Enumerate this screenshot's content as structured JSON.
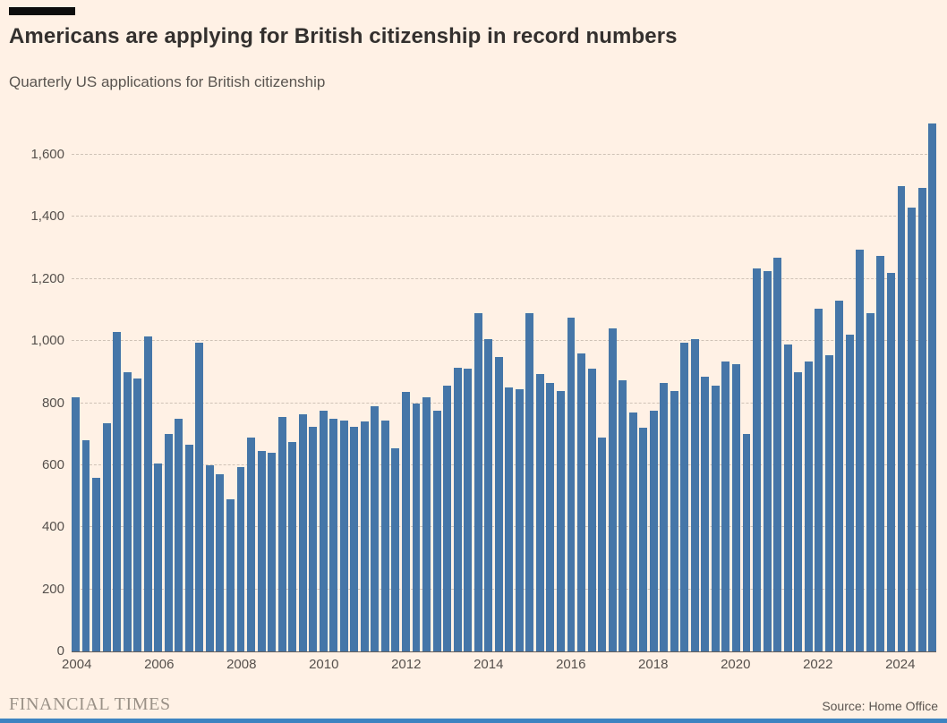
{
  "header": {
    "title": "Americans are applying for British citizenship in record numbers",
    "subtitle": "Quarterly US applications for British citizenship"
  },
  "footer": {
    "brand": "FINANCIAL TIMES",
    "source": "Source: Home Office"
  },
  "colors": {
    "background": "#fff1e5",
    "bar": "#4576a8",
    "grid": "#cfc2b6",
    "axis": "#66605c",
    "bottom_border": "#3d83c1",
    "accent_bar": "#0d0d0d"
  },
  "chart_data": {
    "type": "bar",
    "title": "Americans are applying for British citizenship in record numbers",
    "subtitle": "Quarterly US applications for British citizenship",
    "xlabel": "",
    "ylabel": "",
    "grid": "dashed-horizontal",
    "legend": "none",
    "ylim": [
      0,
      1730
    ],
    "yticks": [
      0,
      200,
      400,
      600,
      800,
      1000,
      1200,
      1400,
      1600
    ],
    "bar_color": "#4576a8",
    "x": [
      "2004 Q1",
      "2004 Q2",
      "2004 Q3",
      "2004 Q4",
      "2005 Q1",
      "2005 Q2",
      "2005 Q3",
      "2005 Q4",
      "2006 Q1",
      "2006 Q2",
      "2006 Q3",
      "2006 Q4",
      "2007 Q1",
      "2007 Q2",
      "2007 Q3",
      "2007 Q4",
      "2008 Q1",
      "2008 Q2",
      "2008 Q3",
      "2008 Q4",
      "2009 Q1",
      "2009 Q2",
      "2009 Q3",
      "2009 Q4",
      "2010 Q1",
      "2010 Q2",
      "2010 Q3",
      "2010 Q4",
      "2011 Q1",
      "2011 Q2",
      "2011 Q3",
      "2011 Q4",
      "2012 Q1",
      "2012 Q2",
      "2012 Q3",
      "2012 Q4",
      "2013 Q1",
      "2013 Q2",
      "2013 Q3",
      "2013 Q4",
      "2014 Q1",
      "2014 Q2",
      "2014 Q3",
      "2014 Q4",
      "2015 Q1",
      "2015 Q2",
      "2015 Q3",
      "2015 Q4",
      "2016 Q1",
      "2016 Q2",
      "2016 Q3",
      "2016 Q4",
      "2017 Q1",
      "2017 Q2",
      "2017 Q3",
      "2017 Q4",
      "2018 Q1",
      "2018 Q2",
      "2018 Q3",
      "2018 Q4",
      "2019 Q1",
      "2019 Q2",
      "2019 Q3",
      "2019 Q4",
      "2020 Q1",
      "2020 Q2",
      "2020 Q3",
      "2020 Q4",
      "2021 Q1",
      "2021 Q2",
      "2021 Q3",
      "2021 Q4",
      "2022 Q1",
      "2022 Q2",
      "2022 Q3",
      "2022 Q4",
      "2023 Q1",
      "2023 Q2",
      "2023 Q3",
      "2023 Q4",
      "2024 Q1",
      "2024 Q2",
      "2024 Q3",
      "2024 Q4"
    ],
    "values": [
      820,
      680,
      560,
      735,
      1030,
      900,
      880,
      1015,
      605,
      700,
      750,
      665,
      995,
      600,
      570,
      490,
      595,
      690,
      645,
      640,
      755,
      675,
      765,
      725,
      775,
      750,
      745,
      725,
      740,
      790,
      745,
      655,
      835,
      800,
      820,
      775,
      855,
      915,
      910,
      1090,
      1005,
      950,
      850,
      845,
      1090,
      895,
      865,
      840,
      1075,
      960,
      910,
      690,
      1040,
      875,
      770,
      720,
      775,
      865,
      840,
      995,
      1005,
      885,
      855,
      935,
      925,
      700,
      1235,
      1225,
      1270,
      990,
      900,
      935,
      1105,
      955,
      1130,
      1020,
      1295,
      1090,
      1275,
      1220,
      1500,
      1430,
      1495,
      1700
    ],
    "xticks": [
      {
        "label": "2004",
        "index": 0
      },
      {
        "label": "2006",
        "index": 8
      },
      {
        "label": "2008",
        "index": 16
      },
      {
        "label": "2010",
        "index": 24
      },
      {
        "label": "2012",
        "index": 32
      },
      {
        "label": "2014",
        "index": 40
      },
      {
        "label": "2016",
        "index": 48
      },
      {
        "label": "2018",
        "index": 56
      },
      {
        "label": "2020",
        "index": 64
      },
      {
        "label": "2022",
        "index": 72
      },
      {
        "label": "2024",
        "index": 80
      }
    ]
  }
}
